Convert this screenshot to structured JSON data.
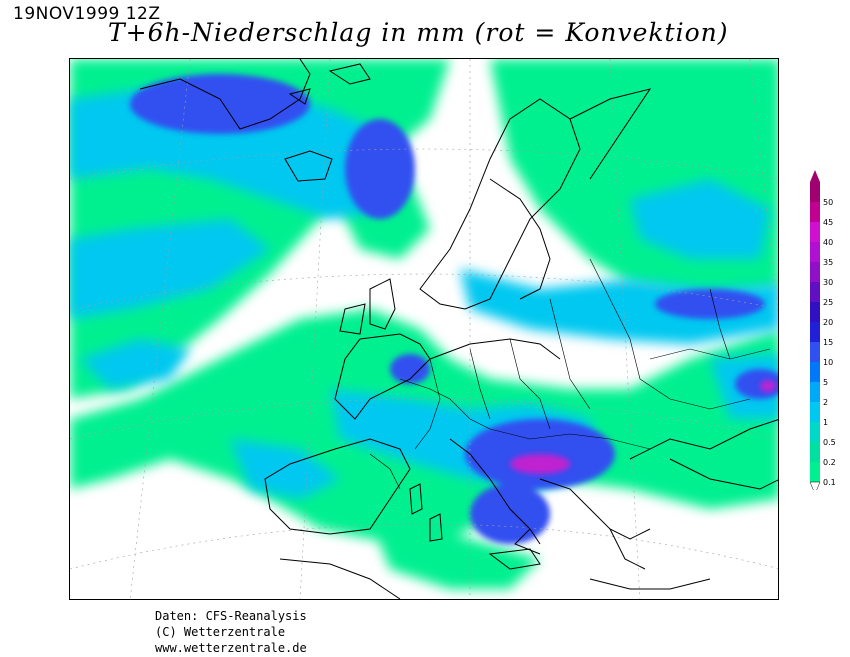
{
  "header": {
    "timestamp": "19NOV1999 12Z",
    "title": "T+6h-Niederschlag in mm (rot = Konvektion)"
  },
  "legend": {
    "levels": [
      "0.1",
      "0.2",
      "0.5",
      "1",
      "2",
      "5",
      "10",
      "15",
      "20",
      "25",
      "30",
      "35",
      "40",
      "45",
      "50"
    ],
    "colors": [
      "#00f090",
      "#00e0a0",
      "#00d8c8",
      "#00c8f0",
      "#00a8f8",
      "#0078f8",
      "#3050f0",
      "#2020d8",
      "#3010c0",
      "#6010c0",
      "#9010c8",
      "#b010d0",
      "#d010d0",
      "#c00090",
      "#a00070"
    ]
  },
  "footer": {
    "line1": "Daten: CFS-Reanalysis",
    "line2": "(C) Wetterzentrale",
    "line3": "www.wetterzentrale.de"
  }
}
